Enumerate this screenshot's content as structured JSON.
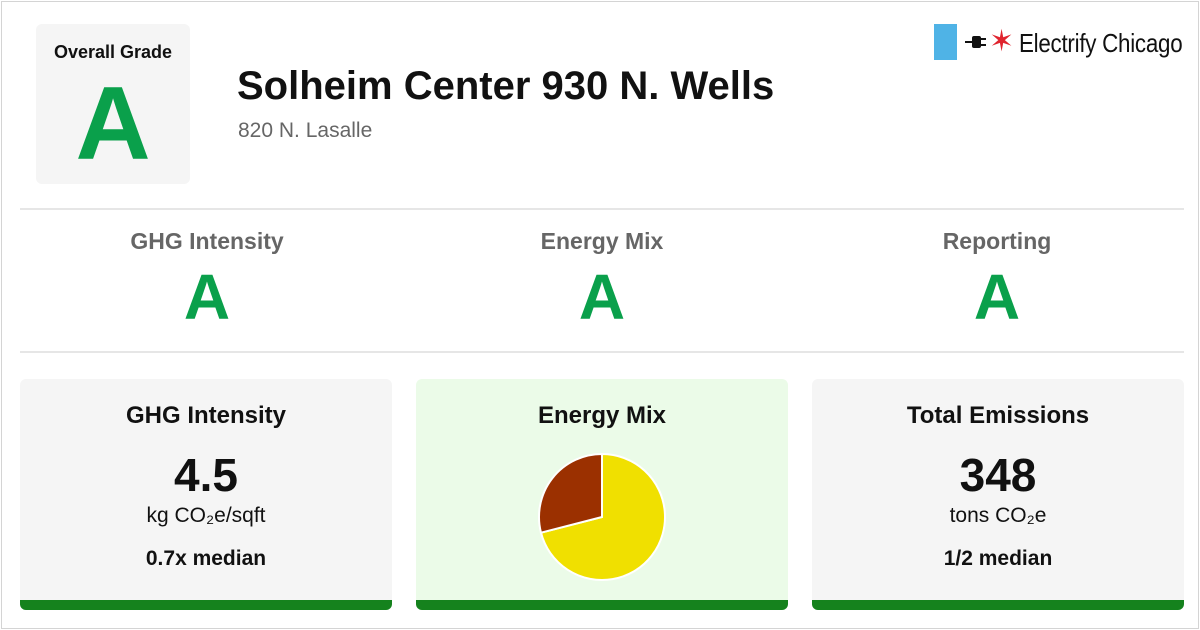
{
  "overall": {
    "label": "Overall Grade",
    "grade": "A"
  },
  "building": {
    "name": "Solheim Center 930 N. Wells",
    "address": "820 N. Lasalle"
  },
  "brand": {
    "name": "Electrify Chicago",
    "flag_color": "#4fb3e6",
    "star_color": "#e0242e",
    "icons": [
      "flag-icon",
      "plug-icon",
      "star-icon"
    ]
  },
  "grades": [
    {
      "label": "GHG Intensity",
      "grade": "A"
    },
    {
      "label": "Energy Mix",
      "grade": "A"
    },
    {
      "label": "Reporting",
      "grade": "A"
    }
  ],
  "cards": {
    "ghg": {
      "title": "GHG Intensity",
      "value": "4.5",
      "unit": "kg CO₂e/sqft",
      "median": "0.7x median"
    },
    "mix": {
      "title": "Energy Mix"
    },
    "emissions": {
      "title": "Total Emissions",
      "value": "348",
      "unit": "tons CO₂e",
      "median": "1/2 median"
    }
  },
  "colors": {
    "grade_green": "#0aa04b",
    "bar_green": "#15821d",
    "mix_card_bg": "#ebfbe8"
  },
  "chart_data": {
    "type": "pie",
    "slices": [
      {
        "value": 71,
        "color": "#f0e000"
      },
      {
        "value": 29,
        "color": "#9b3000"
      }
    ]
  }
}
